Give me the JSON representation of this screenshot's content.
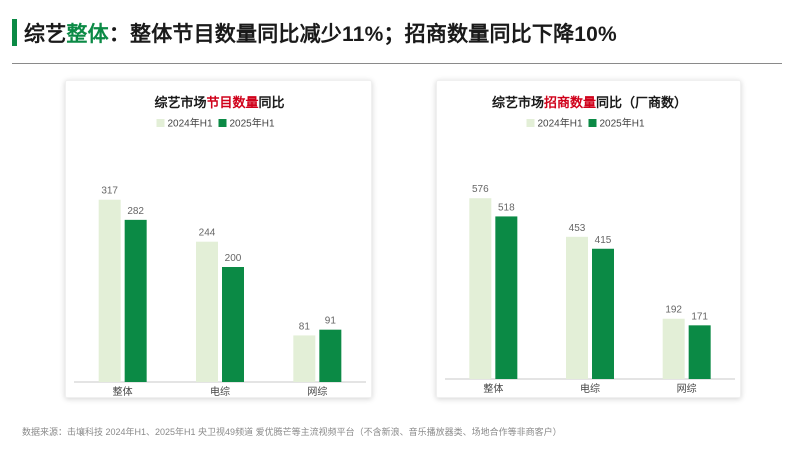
{
  "header": {
    "title_parts": [
      "综艺",
      "整体",
      "：整体节目数量同比减少11%；招商数量同比下降10%"
    ]
  },
  "colors": {
    "brand_green": "#0b8a45",
    "highlight_red": "#d0021b",
    "series_2024": "#e3efd7",
    "series_2025": "#0b8a45",
    "axis": "#c8c8c8"
  },
  "chart_data": [
    {
      "type": "bar",
      "title_parts": [
        "综艺市场",
        "节目数量",
        "同比"
      ],
      "categories": [
        "整体",
        "电综",
        "网综"
      ],
      "series": [
        {
          "name": "2024年H1",
          "values": [
            317,
            244,
            81
          ]
        },
        {
          "name": "2025年H1",
          "values": [
            282,
            200,
            91
          ]
        }
      ],
      "ylim": [
        0,
        360
      ],
      "legend": "top-center",
      "grid": false
    },
    {
      "type": "bar",
      "title_parts": [
        "综艺市场",
        "招商数量",
        "同比（厂商数）"
      ],
      "categories": [
        "整体",
        "电综",
        "网综"
      ],
      "series": [
        {
          "name": "2024年H1",
          "values": [
            576,
            453,
            192
          ]
        },
        {
          "name": "2025年H1",
          "values": [
            518,
            415,
            171
          ]
        }
      ],
      "ylim": [
        0,
        650
      ],
      "legend": "top-center",
      "grid": false
    }
  ],
  "footer": {
    "source": "数据来源：击壤科技 2024年H1、2025年H1 央卫视49频道  爱优腾芒等主流视频平台（不含新浪、音乐播放器类、场地合作等非商客户）"
  }
}
